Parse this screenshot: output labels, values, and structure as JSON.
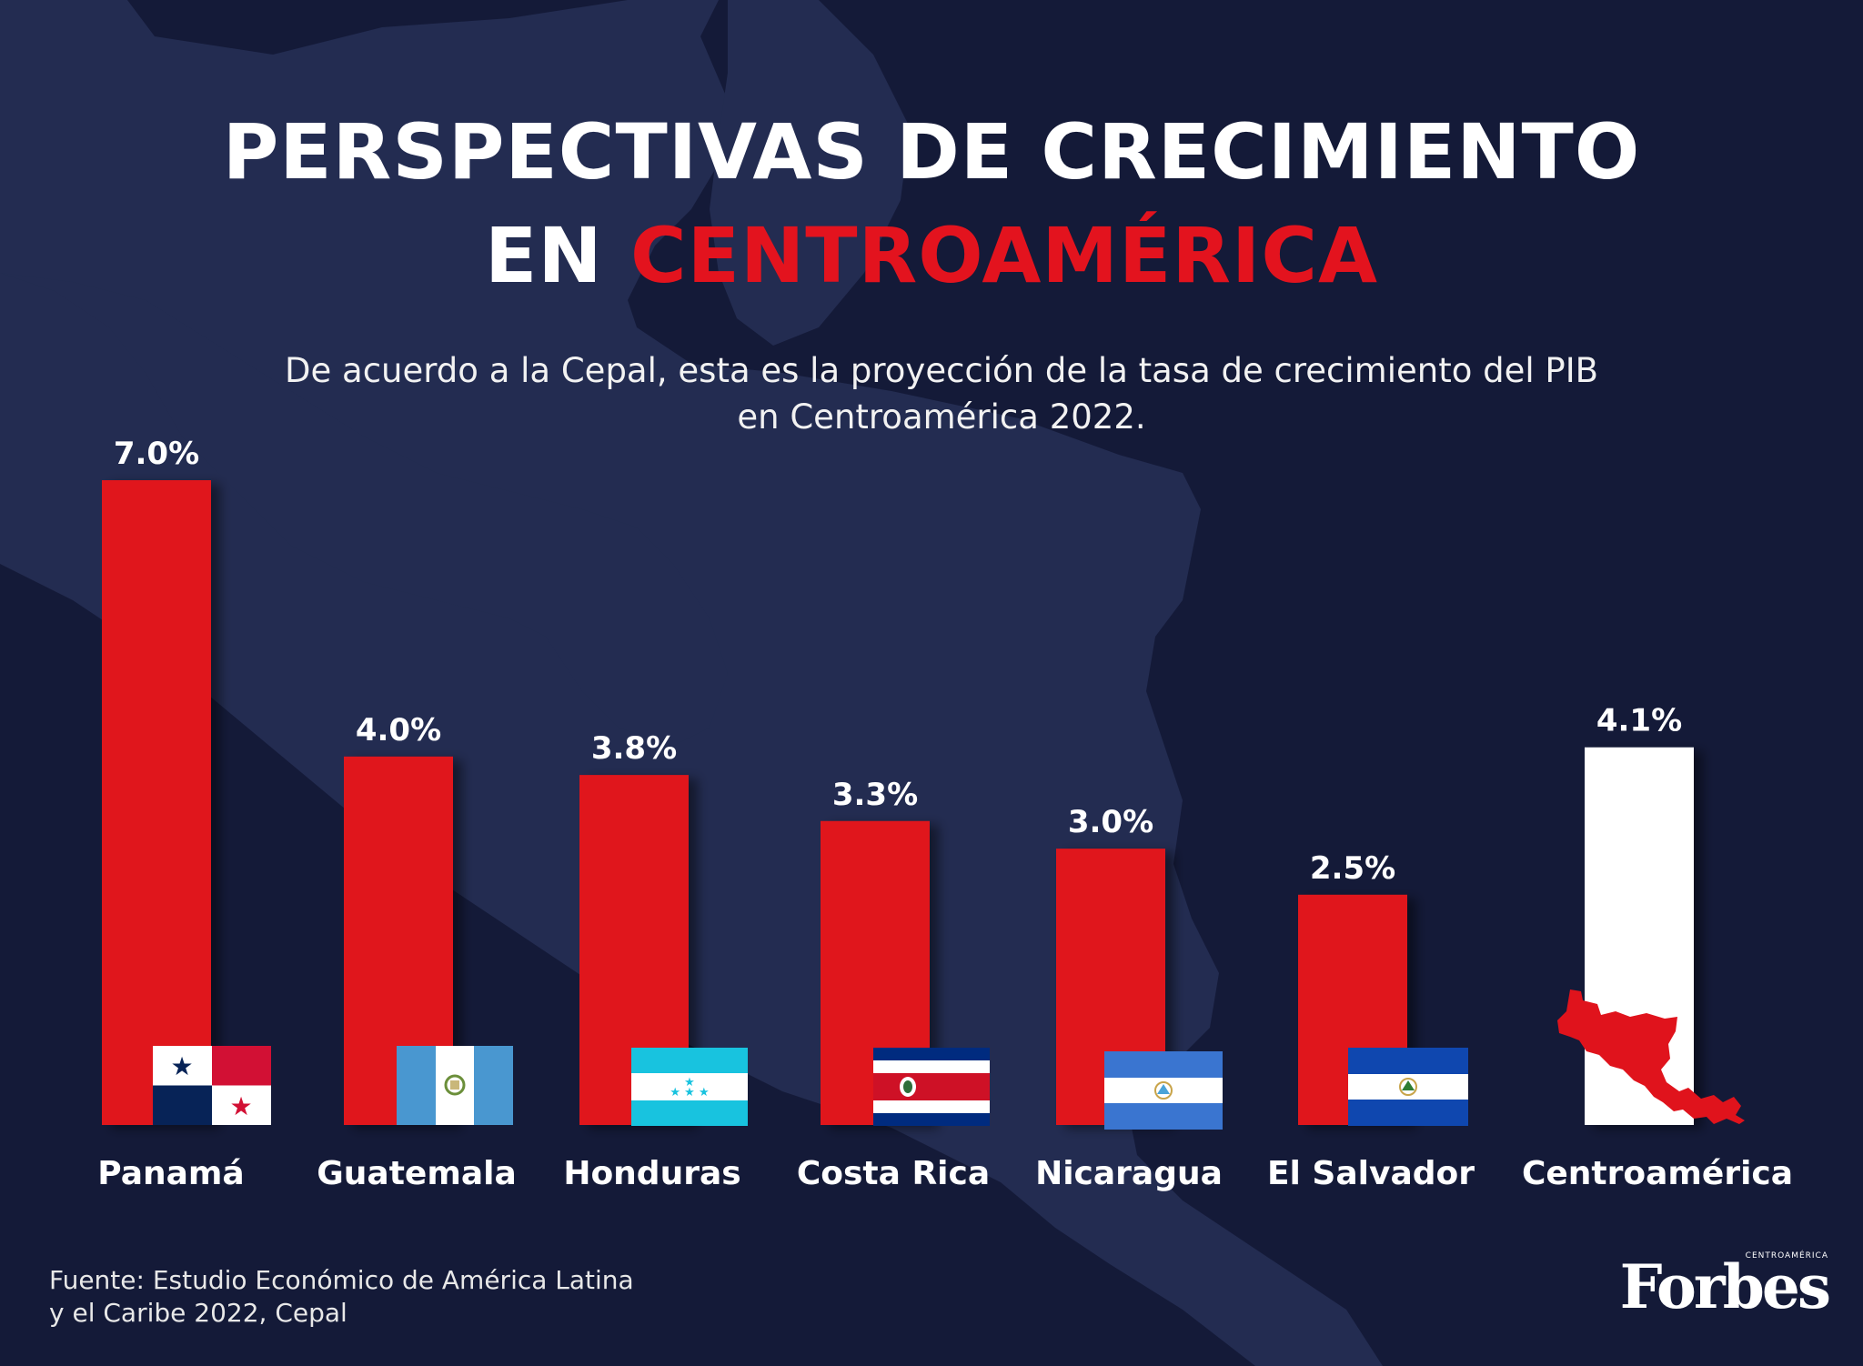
{
  "title": {
    "line1": "PERSPECTIVAS DE CRECIMIENTO",
    "line2_prefix": "EN ",
    "line2_accent": "CENTROAMÉRICA"
  },
  "subtitle": {
    "line1": "De acuerdo a la Cepal, esta es la proyección de la tasa de crecimiento del PIB",
    "line2": "en Centroamérica 2022."
  },
  "source": {
    "line1": "Fuente: Estudio Económico de América Latina",
    "line2": "y el Caribe 2022, Cepal"
  },
  "brand": {
    "small": "CENTROAMÉRICA",
    "main": "Forbes"
  },
  "colors": {
    "background": "#141a38",
    "map": "#232c51",
    "accent": "#e3131e",
    "bar": "#e0131c",
    "highlight_bar": "#ffffff"
  },
  "chart_data": {
    "type": "bar",
    "title": "PERSPECTIVAS DE CRECIMIENTO EN CENTROAMÉRICA",
    "xlabel": "",
    "ylabel": "",
    "unit": "%",
    "ylim": [
      0,
      7
    ],
    "grid": false,
    "categories": [
      "Panamá",
      "Guatemala",
      "Honduras",
      "Costa Rica",
      "Nicaragua",
      "El Salvador",
      "Centroamérica"
    ],
    "values": [
      7.0,
      4.0,
      3.8,
      3.3,
      3.0,
      2.5,
      4.1
    ],
    "value_labels": [
      "7.0%",
      "4.0%",
      "3.8%",
      "3.3%",
      "3.0%",
      "2.5%",
      "4.1%"
    ],
    "flags": [
      "panama-flag",
      "guatemala-flag",
      "honduras-flag",
      "costa-rica-flag",
      "nicaragua-flag",
      "el-salvador-flag",
      "central-america-map"
    ]
  }
}
